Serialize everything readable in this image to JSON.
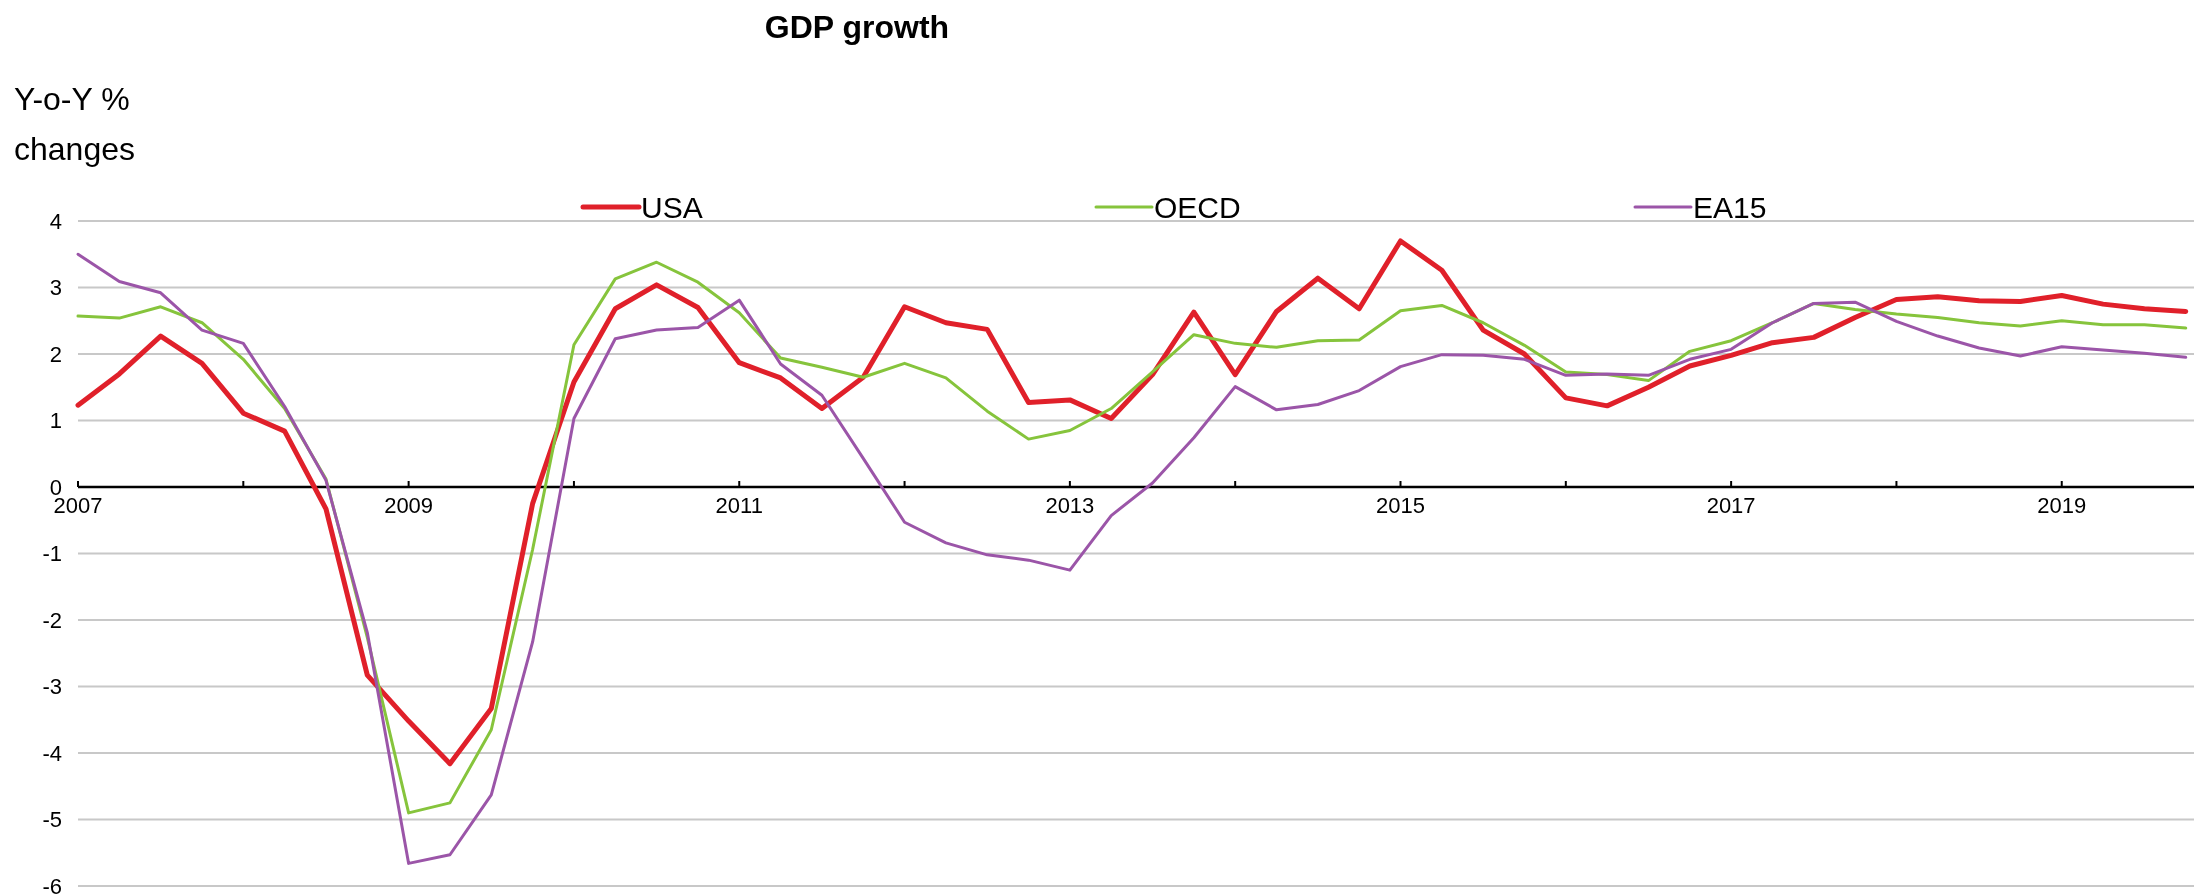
{
  "chart_data": {
    "type": "line",
    "title": "GDP growth",
    "ylabel": "Y-o-Y %\nchanges",
    "x": [
      2007,
      2007.25,
      2007.5,
      2007.75,
      2008,
      2008.25,
      2008.5,
      2008.75,
      2009,
      2009.25,
      2009.5,
      2009.75,
      2010,
      2010.25,
      2010.5,
      2010.75,
      2011,
      2011.25,
      2011.5,
      2011.75,
      2012,
      2012.25,
      2012.5,
      2012.75,
      2013,
      2013.25,
      2013.5,
      2013.75,
      2014,
      2014.25,
      2014.5,
      2014.75,
      2015,
      2015.25,
      2015.5,
      2015.75,
      2016,
      2016.25,
      2016.5,
      2016.75,
      2017,
      2017.25,
      2017.5,
      2017.75,
      2018,
      2018.25,
      2018.5,
      2018.75,
      2019,
      2019.25,
      2019.5,
      2019.75
    ],
    "series": [
      {
        "name": "USA",
        "color": "#e0202a",
        "values": [
          1.23,
          1.7,
          2.27,
          1.86,
          1.11,
          0.84,
          -0.33,
          -2.83,
          -3.52,
          -4.16,
          -3.33,
          -0.25,
          1.58,
          2.68,
          3.04,
          2.7,
          1.87,
          1.64,
          1.18,
          1.65,
          2.71,
          2.47,
          2.37,
          1.27,
          1.31,
          1.03,
          1.69,
          2.63,
          1.69,
          2.64,
          3.14,
          2.68,
          3.7,
          3.26,
          2.36,
          2.0,
          1.34,
          1.22,
          1.5,
          1.82,
          1.98,
          2.17,
          2.25,
          2.55,
          2.82,
          2.86,
          2.8,
          2.79,
          2.88,
          2.75,
          2.68,
          2.64
        ]
      },
      {
        "name": "OECD",
        "color": "#86c43c",
        "values": [
          2.57,
          2.54,
          2.71,
          2.47,
          1.92,
          1.18,
          0.12,
          -2.26,
          -4.9,
          -4.75,
          -3.65,
          -0.94,
          2.14,
          3.13,
          3.38,
          3.08,
          2.62,
          1.94,
          1.8,
          1.65,
          1.86,
          1.64,
          1.14,
          0.72,
          0.85,
          1.18,
          1.73,
          2.29,
          2.16,
          2.1,
          2.2,
          2.21,
          2.65,
          2.73,
          2.47,
          2.13,
          1.73,
          1.69,
          1.6,
          2.04,
          2.2,
          2.47,
          2.76,
          2.67,
          2.6,
          2.55,
          2.47,
          2.42,
          2.5,
          2.44,
          2.44,
          2.39
        ]
      },
      {
        "name": "EA15",
        "color": "#9b55a8",
        "values": [
          3.5,
          3.09,
          2.92,
          2.36,
          2.16,
          1.21,
          0.1,
          -2.19,
          -5.66,
          -5.53,
          -4.63,
          -2.33,
          1.03,
          2.23,
          2.36,
          2.4,
          2.81,
          1.85,
          1.38,
          0.43,
          -0.53,
          -0.84,
          -1.02,
          -1.1,
          -1.25,
          -0.43,
          0.06,
          0.74,
          1.51,
          1.16,
          1.24,
          1.45,
          1.81,
          1.99,
          1.98,
          1.92,
          1.68,
          1.7,
          1.68,
          1.92,
          2.07,
          2.47,
          2.76,
          2.78,
          2.49,
          2.27,
          2.09,
          1.97,
          2.11,
          2.06,
          2.01,
          1.95
        ]
      }
    ],
    "xlim": [
      2007,
      2019.8
    ],
    "xticks": [
      2007,
      {
        "value": 2008,
        "label": null
      },
      2009,
      {
        "value": 2010,
        "label": null
      },
      2011,
      {
        "value": 2012,
        "label": null
      },
      2013,
      {
        "value": 2014,
        "label": null
      },
      2015,
      {
        "value": 2016,
        "label": null
      },
      2017,
      {
        "value": 2018,
        "label": null
      },
      2019
    ],
    "ylim": [
      -6,
      4
    ],
    "yticks": [
      -6,
      -5,
      -4,
      -3,
      -2,
      -1,
      0,
      1,
      2,
      3,
      4
    ],
    "grid": "y",
    "legend": "top",
    "marker": "none",
    "line_style": "solid"
  }
}
